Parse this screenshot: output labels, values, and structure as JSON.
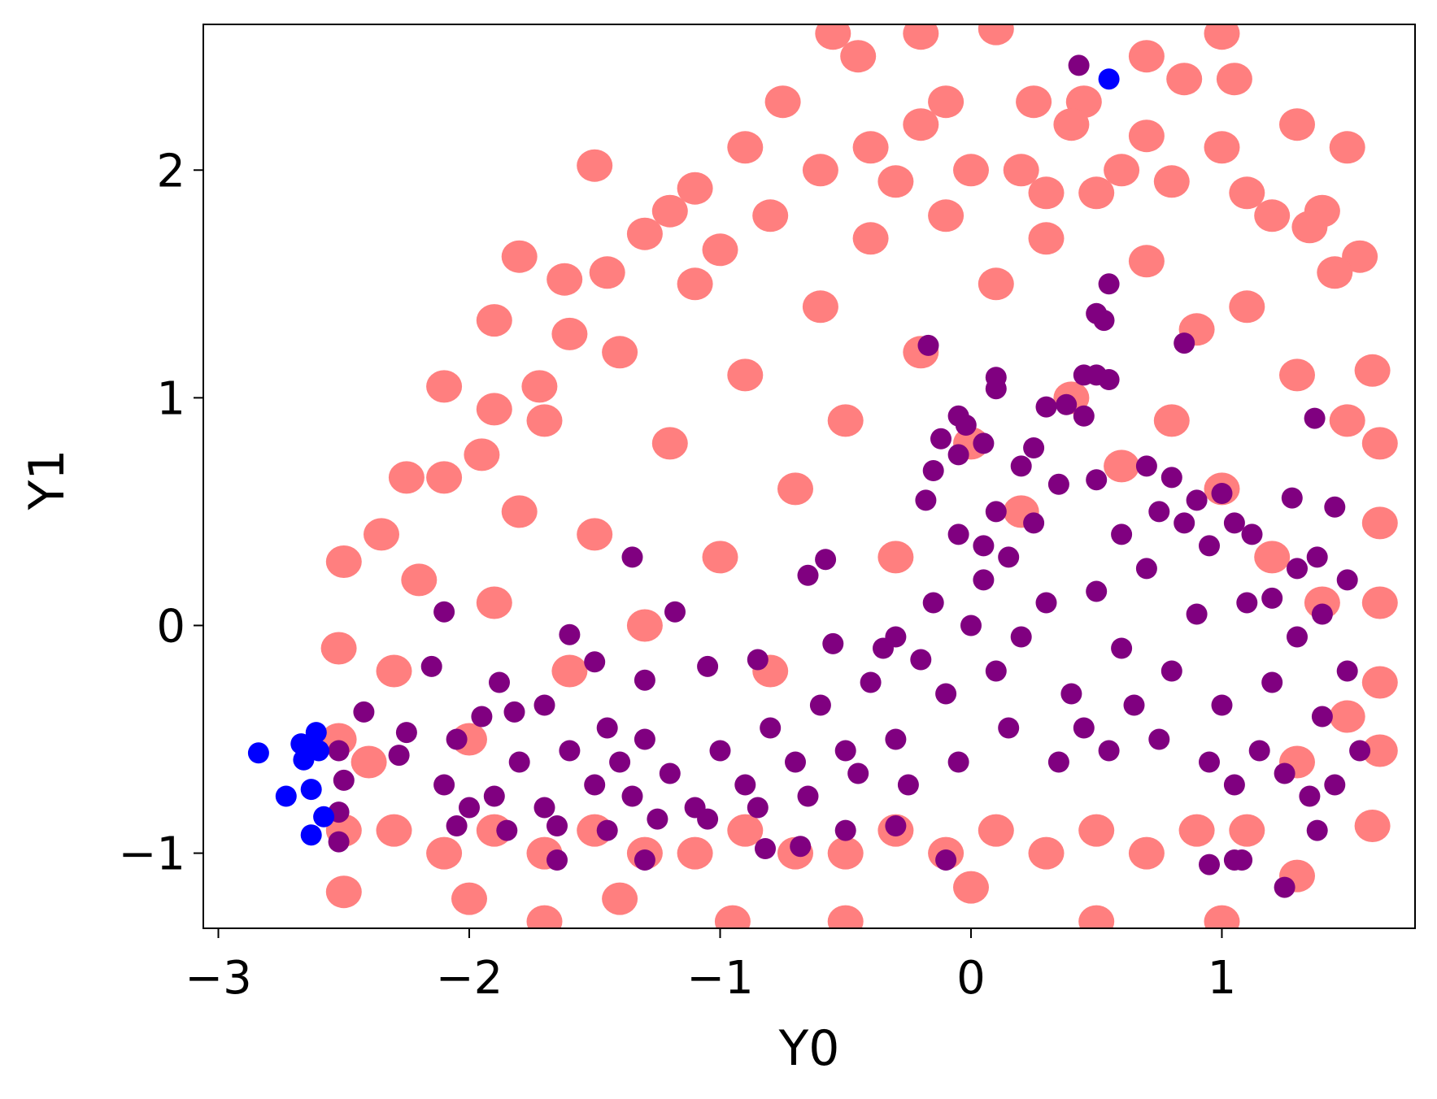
{
  "chart_data": {
    "type": "scatter",
    "title": "",
    "xlabel": "Y0",
    "ylabel": "Y1",
    "xlim": [
      -3.06,
      1.77
    ],
    "ylim": [
      -1.33,
      2.64
    ],
    "grid": false,
    "xticks": [
      -3,
      -2,
      -1,
      0,
      1
    ],
    "yticks": [
      -1,
      0,
      1,
      2
    ],
    "xtick_labels": [
      "−3",
      "−2",
      "−1",
      "0",
      "1"
    ],
    "ytick_labels": [
      "−1",
      "0",
      "1",
      "2"
    ],
    "series": [
      {
        "color": "#ff7f7f",
        "description_points": "dense background cloud",
        "points": [
          [
            -2.1,
            1.05
          ],
          [
            -1.8,
            1.62
          ],
          [
            -1.9,
            1.34
          ],
          [
            -1.5,
            2.02
          ],
          [
            -1.3,
            1.72
          ],
          [
            -1.1,
            1.92
          ],
          [
            -0.75,
            2.3
          ],
          [
            -0.45,
            2.5
          ],
          [
            -0.55,
            2.6
          ],
          [
            -0.2,
            2.6
          ],
          [
            0.1,
            2.62
          ],
          [
            0.25,
            2.3
          ],
          [
            0.45,
            2.3
          ],
          [
            0.7,
            2.5
          ],
          [
            0.85,
            2.4
          ],
          [
            1.0,
            2.6
          ],
          [
            1.05,
            2.4
          ],
          [
            1.3,
            2.2
          ],
          [
            1.5,
            2.1
          ],
          [
            1.4,
            1.82
          ],
          [
            1.55,
            1.62
          ],
          [
            1.6,
            1.12
          ],
          [
            1.63,
            0.8
          ],
          [
            1.63,
            0.45
          ],
          [
            1.63,
            0.1
          ],
          [
            1.63,
            -0.25
          ],
          [
            1.63,
            -0.55
          ],
          [
            1.6,
            -0.88
          ],
          [
            1.3,
            -1.1
          ],
          [
            1.0,
            -1.3
          ],
          [
            0.5,
            -1.3
          ],
          [
            0.0,
            -1.15
          ],
          [
            -0.5,
            -1.3
          ],
          [
            -0.95,
            -1.3
          ],
          [
            -1.4,
            -1.2
          ],
          [
            -1.7,
            -1.3
          ],
          [
            -2.0,
            -1.2
          ],
          [
            -2.5,
            -1.17
          ],
          [
            -2.5,
            -0.9
          ],
          [
            -2.52,
            -0.5
          ],
          [
            -2.52,
            -0.1
          ],
          [
            -2.5,
            0.28
          ],
          [
            -2.35,
            0.4
          ],
          [
            -2.25,
            0.65
          ],
          [
            -2.1,
            0.65
          ],
          [
            -1.95,
            0.75
          ],
          [
            -1.9,
            0.95
          ],
          [
            -1.72,
            1.05
          ],
          [
            -1.6,
            1.28
          ],
          [
            -1.62,
            1.52
          ],
          [
            -1.45,
            1.55
          ],
          [
            -1.2,
            1.82
          ],
          [
            -1.0,
            1.65
          ],
          [
            -0.9,
            2.1
          ],
          [
            -0.8,
            1.8
          ],
          [
            -0.6,
            2.0
          ],
          [
            -0.4,
            2.1
          ],
          [
            -0.3,
            1.95
          ],
          [
            -0.2,
            2.2
          ],
          [
            -0.1,
            2.3
          ],
          [
            0.0,
            2.0
          ],
          [
            0.2,
            2.0
          ],
          [
            0.3,
            1.9
          ],
          [
            0.4,
            2.2
          ],
          [
            0.6,
            2.0
          ],
          [
            0.7,
            2.15
          ],
          [
            0.8,
            1.95
          ],
          [
            1.0,
            2.1
          ],
          [
            1.1,
            1.9
          ],
          [
            1.2,
            1.8
          ],
          [
            1.35,
            1.75
          ],
          [
            1.45,
            1.55
          ],
          [
            -2.4,
            -0.6
          ],
          [
            -2.3,
            -0.2
          ],
          [
            -2.2,
            0.2
          ],
          [
            -2.0,
            -0.5
          ],
          [
            -1.9,
            0.1
          ],
          [
            -1.8,
            0.5
          ],
          [
            -1.7,
            0.9
          ],
          [
            -1.6,
            -0.2
          ],
          [
            -1.5,
            0.4
          ],
          [
            -1.4,
            1.2
          ],
          [
            -1.3,
            0.0
          ],
          [
            -1.2,
            0.8
          ],
          [
            -1.1,
            1.5
          ],
          [
            -1.0,
            0.3
          ],
          [
            -0.9,
            1.1
          ],
          [
            -0.8,
            -0.2
          ],
          [
            -0.7,
            0.6
          ],
          [
            -0.6,
            1.4
          ],
          [
            -0.5,
            0.9
          ],
          [
            -0.4,
            1.7
          ],
          [
            -0.3,
            0.3
          ],
          [
            -0.2,
            1.2
          ],
          [
            -0.1,
            1.8
          ],
          [
            0.0,
            0.8
          ],
          [
            0.1,
            1.5
          ],
          [
            0.2,
            0.5
          ],
          [
            0.3,
            1.7
          ],
          [
            0.4,
            1.0
          ],
          [
            0.5,
            1.9
          ],
          [
            0.6,
            0.7
          ],
          [
            0.7,
            1.6
          ],
          [
            0.8,
            0.9
          ],
          [
            0.9,
            1.3
          ],
          [
            1.0,
            0.6
          ],
          [
            1.1,
            1.4
          ],
          [
            1.2,
            0.3
          ],
          [
            1.3,
            1.1
          ],
          [
            1.4,
            0.1
          ],
          [
            1.5,
            0.9
          ],
          [
            1.5,
            -0.4
          ],
          [
            1.3,
            -0.6
          ],
          [
            1.1,
            -0.9
          ],
          [
            0.9,
            -0.9
          ],
          [
            0.7,
            -1.0
          ],
          [
            0.5,
            -0.9
          ],
          [
            0.3,
            -1.0
          ],
          [
            0.1,
            -0.9
          ],
          [
            -0.1,
            -1.0
          ],
          [
            -0.3,
            -0.9
          ],
          [
            -0.5,
            -1.0
          ],
          [
            -0.7,
            -1.0
          ],
          [
            -0.9,
            -0.9
          ],
          [
            -1.1,
            -1.0
          ],
          [
            -1.3,
            -1.0
          ],
          [
            -1.5,
            -0.9
          ],
          [
            -1.7,
            -1.0
          ],
          [
            -1.9,
            -0.9
          ],
          [
            -2.1,
            -1.0
          ],
          [
            -2.3,
            -0.9
          ]
        ]
      },
      {
        "color": "#800080",
        "description_points": "main trend points",
        "points": [
          [
            0.43,
            2.46
          ],
          [
            0.55,
            1.5
          ],
          [
            0.5,
            1.37
          ],
          [
            0.53,
            1.34
          ],
          [
            -0.17,
            1.23
          ],
          [
            0.85,
            1.24
          ],
          [
            0.1,
            1.09
          ],
          [
            0.45,
            1.1
          ],
          [
            0.5,
            1.1
          ],
          [
            0.55,
            1.08
          ],
          [
            0.1,
            1.04
          ],
          [
            0.3,
            0.96
          ],
          [
            0.38,
            0.97
          ],
          [
            0.45,
            0.92
          ],
          [
            -0.05,
            0.92
          ],
          [
            -0.02,
            0.88
          ],
          [
            -0.12,
            0.82
          ],
          [
            -0.05,
            0.75
          ],
          [
            0.05,
            0.8
          ],
          [
            1.37,
            0.91
          ],
          [
            -0.15,
            0.68
          ],
          [
            -0.18,
            0.55
          ],
          [
            0.25,
            0.78
          ],
          [
            0.2,
            0.7
          ],
          [
            0.7,
            0.7
          ],
          [
            0.8,
            0.65
          ],
          [
            0.35,
            0.62
          ],
          [
            0.5,
            0.64
          ],
          [
            1.28,
            0.56
          ],
          [
            1.45,
            0.52
          ],
          [
            1.0,
            0.58
          ],
          [
            0.9,
            0.55
          ],
          [
            -1.35,
            0.3
          ],
          [
            -0.58,
            0.29
          ],
          [
            -0.65,
            0.22
          ],
          [
            -2.1,
            0.06
          ],
          [
            -1.18,
            0.06
          ],
          [
            -1.6,
            -0.04
          ],
          [
            1.5,
            0.2
          ],
          [
            1.38,
            0.3
          ],
          [
            1.3,
            0.25
          ],
          [
            1.2,
            0.12
          ],
          [
            1.4,
            0.05
          ],
          [
            -2.15,
            -0.18
          ],
          [
            -1.5,
            -0.16
          ],
          [
            -1.05,
            -0.18
          ],
          [
            -0.85,
            -0.15
          ],
          [
            -0.55,
            -0.08
          ],
          [
            -0.3,
            -0.05
          ],
          [
            -2.42,
            -0.38
          ],
          [
            -1.88,
            -0.25
          ],
          [
            -1.3,
            -0.24
          ],
          [
            -2.25,
            -0.47
          ],
          [
            -2.28,
            -0.57
          ],
          [
            -2.05,
            -0.5
          ],
          [
            -1.95,
            -0.4
          ],
          [
            -1.82,
            -0.38
          ],
          [
            -1.7,
            -0.35
          ],
          [
            -1.65,
            -1.03
          ],
          [
            -1.3,
            -1.03
          ],
          [
            -0.82,
            -0.98
          ],
          [
            -0.68,
            -0.97
          ],
          [
            -0.5,
            -0.9
          ],
          [
            -0.3,
            -0.88
          ],
          [
            -0.1,
            -1.03
          ],
          [
            0.95,
            -1.05
          ],
          [
            1.05,
            -1.03
          ],
          [
            1.08,
            -1.03
          ],
          [
            1.25,
            -1.15
          ],
          [
            1.38,
            -0.9
          ],
          [
            -2.52,
            -0.55
          ],
          [
            -2.5,
            -0.68
          ],
          [
            -2.52,
            -0.82
          ],
          [
            -2.52,
            -0.95
          ],
          [
            -2.1,
            -0.7
          ],
          [
            -2.0,
            -0.8
          ],
          [
            -1.9,
            -0.75
          ],
          [
            -1.8,
            -0.6
          ],
          [
            -1.7,
            -0.8
          ],
          [
            -1.6,
            -0.55
          ],
          [
            -1.5,
            -0.7
          ],
          [
            -1.45,
            -0.45
          ],
          [
            -1.4,
            -0.6
          ],
          [
            -1.35,
            -0.75
          ],
          [
            -1.3,
            -0.5
          ],
          [
            -1.2,
            -0.65
          ],
          [
            -1.1,
            -0.8
          ],
          [
            -1.0,
            -0.55
          ],
          [
            -0.9,
            -0.7
          ],
          [
            -0.8,
            -0.45
          ],
          [
            -0.7,
            -0.6
          ],
          [
            -0.6,
            -0.35
          ],
          [
            -0.5,
            -0.55
          ],
          [
            -0.4,
            -0.25
          ],
          [
            -0.3,
            -0.5
          ],
          [
            -0.2,
            -0.15
          ],
          [
            -0.1,
            -0.3
          ],
          [
            0.0,
            0.0
          ],
          [
            0.05,
            0.2
          ],
          [
            0.1,
            -0.2
          ],
          [
            0.15,
            0.3
          ],
          [
            0.2,
            -0.05
          ],
          [
            0.3,
            0.1
          ],
          [
            0.4,
            -0.3
          ],
          [
            0.5,
            0.15
          ],
          [
            0.6,
            -0.1
          ],
          [
            0.7,
            0.25
          ],
          [
            0.8,
            -0.2
          ],
          [
            0.9,
            0.05
          ],
          [
            1.0,
            -0.35
          ],
          [
            1.1,
            0.1
          ],
          [
            1.2,
            -0.25
          ],
          [
            1.3,
            -0.05
          ],
          [
            1.4,
            -0.4
          ],
          [
            1.5,
            -0.2
          ],
          [
            1.55,
            -0.55
          ],
          [
            0.95,
            -0.6
          ],
          [
            1.05,
            -0.7
          ],
          [
            1.15,
            -0.55
          ],
          [
            0.75,
            -0.5
          ],
          [
            0.55,
            -0.55
          ],
          [
            0.35,
            -0.6
          ],
          [
            -0.05,
            -0.6
          ],
          [
            -0.25,
            -0.7
          ],
          [
            -0.45,
            -0.65
          ],
          [
            -0.65,
            -0.75
          ],
          [
            -0.85,
            -0.8
          ],
          [
            -1.05,
            -0.85
          ],
          [
            -1.25,
            -0.85
          ],
          [
            -1.45,
            -0.9
          ],
          [
            -1.65,
            -0.88
          ],
          [
            -1.85,
            -0.9
          ],
          [
            -2.05,
            -0.88
          ],
          [
            0.1,
            0.5
          ],
          [
            0.05,
            0.35
          ],
          [
            0.25,
            0.45
          ],
          [
            -0.05,
            0.4
          ],
          [
            0.6,
            0.4
          ],
          [
            0.75,
            0.5
          ],
          [
            0.85,
            0.45
          ],
          [
            0.95,
            0.35
          ],
          [
            1.05,
            0.45
          ],
          [
            1.12,
            0.4
          ],
          [
            -0.15,
            0.1
          ],
          [
            -0.35,
            -0.1
          ],
          [
            0.15,
            -0.45
          ],
          [
            0.45,
            -0.45
          ],
          [
            0.65,
            -0.35
          ],
          [
            1.25,
            -0.65
          ],
          [
            1.45,
            -0.7
          ],
          [
            1.35,
            -0.75
          ]
        ]
      },
      {
        "color": "#0000ff",
        "description_points": "outlier points",
        "points": [
          [
            0.55,
            2.4
          ],
          [
            -2.84,
            -0.56
          ],
          [
            -2.73,
            -0.75
          ],
          [
            -2.67,
            -0.52
          ],
          [
            -2.66,
            -0.59
          ],
          [
            -2.64,
            -0.55
          ],
          [
            -2.63,
            -0.72
          ],
          [
            -2.63,
            -0.92
          ],
          [
            -2.61,
            -0.47
          ],
          [
            -2.6,
            -0.55
          ],
          [
            -2.58,
            -0.84
          ]
        ]
      }
    ]
  }
}
